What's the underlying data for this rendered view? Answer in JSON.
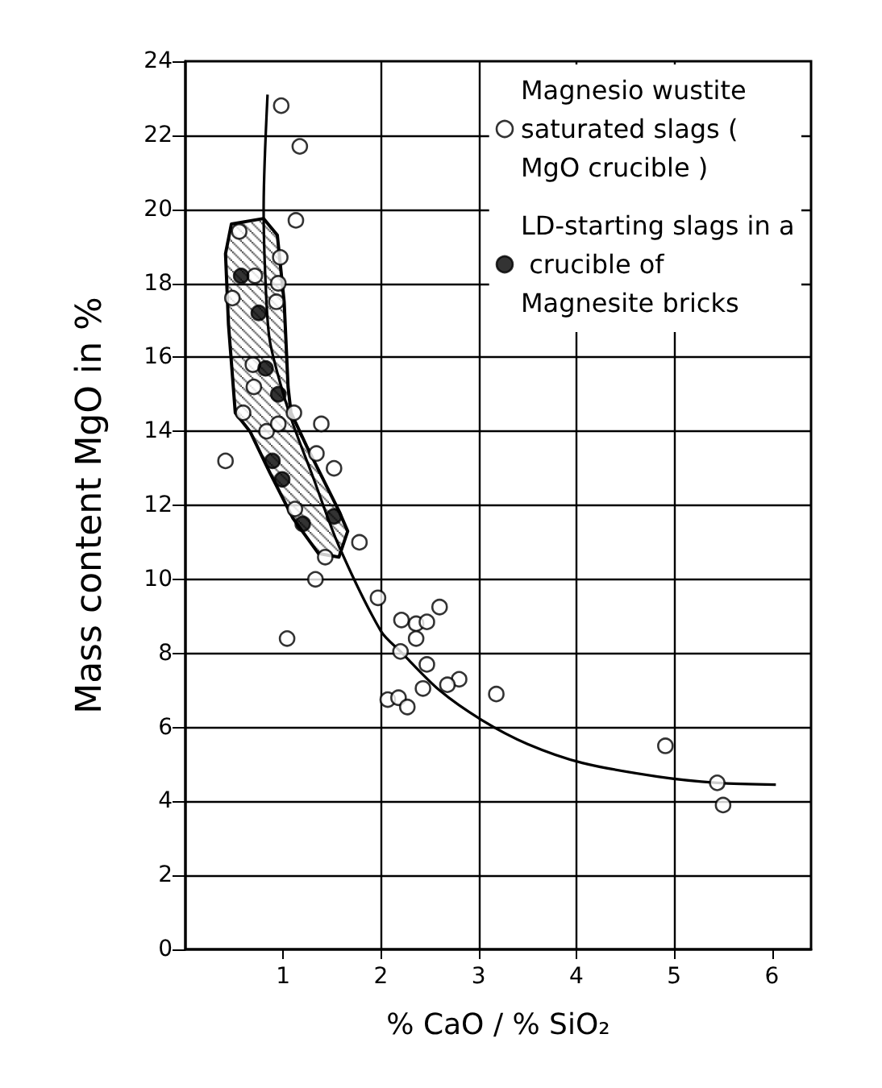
{
  "chart_data": {
    "type": "scatter",
    "xlabel": "% CaO / % SiO₂",
    "ylabel": "Mass content MgO in %",
    "xlim": [
      0,
      6.4
    ],
    "xticks": [
      1,
      2,
      3,
      4,
      5,
      6
    ],
    "ylim": [
      0,
      24
    ],
    "yticks": [
      0,
      2,
      4,
      6,
      8,
      10,
      12,
      14,
      16,
      18,
      20,
      22,
      24
    ],
    "grid": true,
    "legend": "top right",
    "series": [
      {
        "name": "Magnesio wustite saturated slags ( MgO crucible )",
        "marker": "circle",
        "color": "#ffffff",
        "x": [
          0.98,
          1.17,
          1.13,
          0.55,
          0.97,
          0.71,
          0.95,
          0.48,
          0.93,
          0.69,
          0.7,
          0.59,
          1.11,
          0.83,
          0.95,
          1.39,
          0.41,
          1.34,
          1.52,
          1.12,
          1.78,
          1.43,
          1.33,
          1.97,
          2.6,
          2.21,
          2.36,
          2.47,
          2.36,
          1.04,
          2.2,
          2.47,
          2.8,
          2.68,
          2.43,
          2.07,
          2.18,
          2.27,
          3.18,
          4.91,
          5.44,
          5.5
        ],
        "values": [
          22.8,
          21.7,
          19.7,
          19.4,
          18.7,
          18.2,
          18.0,
          17.6,
          17.5,
          15.8,
          15.2,
          14.5,
          14.5,
          14.0,
          14.2,
          14.2,
          13.2,
          13.4,
          13.0,
          11.9,
          11.0,
          10.6,
          10.0,
          9.5,
          9.25,
          8.9,
          8.8,
          8.85,
          8.4,
          8.4,
          8.05,
          7.7,
          7.3,
          7.15,
          7.05,
          6.75,
          6.8,
          6.55,
          6.9,
          5.5,
          4.5,
          3.9
        ]
      },
      {
        "name": "LD-starting slags in a crucible of Magnesite bricks",
        "marker": "circle",
        "color": "#000000",
        "x": [
          0.57,
          0.75,
          0.82,
          0.95,
          0.89,
          0.99,
          1.52,
          1.2
        ],
        "values": [
          18.2,
          17.2,
          15.7,
          15.0,
          13.2,
          12.7,
          11.7,
          11.5
        ]
      },
      {
        "type": "area",
        "color": "#000000",
        "x": [
          0.47,
          0.41,
          0.44,
          0.51,
          0.66,
          0.86,
          1.1,
          1.36,
          1.57,
          1.66,
          1.57,
          1.24,
          1.08,
          1.05,
          1.01,
          0.94,
          0.8,
          0.47
        ],
        "values": [
          19.6,
          18.8,
          16.9,
          14.5,
          14.0,
          12.9,
          11.65,
          10.7,
          10.6,
          11.3,
          11.85,
          13.6,
          14.5,
          15.2,
          17.5,
          19.3,
          19.75,
          19.6
        ]
      },
      {
        "type": "line",
        "marker": "none",
        "color": "#000000",
        "x": [
          0.84,
          0.8,
          0.82,
          0.86,
          0.97,
          1.1,
          1.3,
          1.57,
          2.0,
          2.2,
          2.6,
          3.03,
          3.5,
          4.06,
          4.83,
          5.44,
          6.04
        ],
        "values": [
          23.1,
          20.0,
          18.0,
          16.5,
          15.3,
          14.2,
          12.8,
          10.9,
          8.6,
          8.05,
          7.0,
          6.2,
          5.55,
          5.04,
          4.67,
          4.5,
          4.45
        ]
      }
    ]
  }
}
